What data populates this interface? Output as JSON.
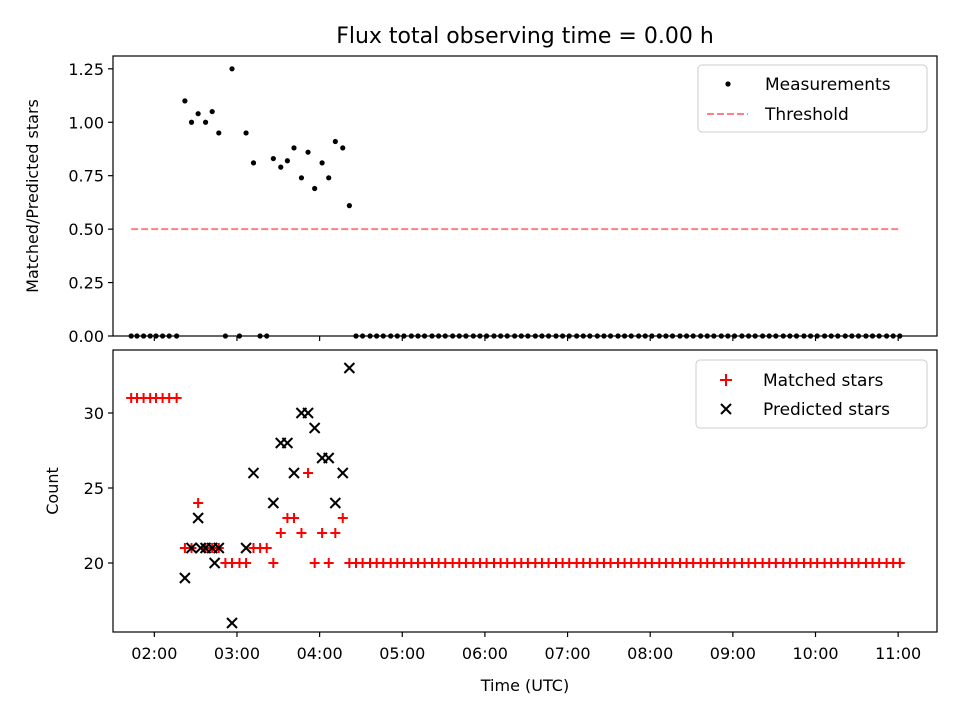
{
  "figure": {
    "title": "Flux total observing time = 0.00 h",
    "x_tick_labels": [
      "02:00",
      "03:00",
      "04:00",
      "05:00",
      "06:00",
      "07:00",
      "08:00",
      "09:00",
      "10:00",
      "11:00"
    ],
    "xlabel": "Time (UTC)"
  },
  "chart_data": [
    {
      "type": "scatter",
      "ylabel": "Matched/Predicted stars",
      "xlabel": "",
      "x_unit": "hours UTC",
      "xlim": [
        1.5,
        11.47
      ],
      "ylim": [
        0.0,
        1.31
      ],
      "y_ticks": [
        0.0,
        0.25,
        0.5,
        0.75,
        1.0,
        1.25
      ],
      "y_tick_labels": [
        "0.00",
        "0.25",
        "0.50",
        "0.75",
        "1.00",
        "1.25"
      ],
      "legend_position": "top-right",
      "series": [
        {
          "name": "Measurements",
          "kind": "scatter",
          "marker": "dot",
          "color": "#000000",
          "x": [
            1.72,
            1.79,
            1.87,
            1.95,
            2.02,
            2.1,
            2.18,
            2.27,
            2.37,
            2.45,
            2.53,
            2.62,
            2.7,
            2.78,
            2.86,
            2.94,
            3.03,
            3.11,
            3.2,
            3.28,
            3.36,
            3.44,
            3.53,
            3.61,
            3.69,
            3.78,
            3.86,
            3.94,
            4.03,
            4.11,
            4.19,
            4.28,
            4.36,
            4.44,
            4.52,
            4.61,
            4.69,
            4.77,
            4.86,
            4.94,
            5.02,
            5.11,
            5.19,
            5.27,
            5.36,
            5.44,
            5.52,
            5.61,
            5.69,
            5.77,
            5.86,
            5.94,
            6.02,
            6.11,
            6.19,
            6.27,
            6.36,
            6.44,
            6.52,
            6.61,
            6.69,
            6.77,
            6.86,
            6.94,
            7.02,
            7.11,
            7.19,
            7.27,
            7.36,
            7.44,
            7.52,
            7.61,
            7.69,
            7.77,
            7.86,
            7.94,
            8.02,
            8.11,
            8.19,
            8.27,
            8.36,
            8.44,
            8.52,
            8.61,
            8.69,
            8.77,
            8.86,
            8.94,
            9.02,
            9.11,
            9.19,
            9.27,
            9.36,
            9.44,
            9.52,
            9.61,
            9.69,
            9.77,
            9.86,
            9.94,
            10.02,
            10.11,
            10.19,
            10.27,
            10.36,
            10.44,
            10.52,
            10.61,
            10.69,
            10.77,
            10.86,
            10.94,
            11.02
          ],
          "y": [
            0,
            0,
            0,
            0,
            0,
            0,
            0,
            0,
            1.1,
            1.0,
            1.04,
            1.0,
            1.05,
            0.95,
            0,
            1.25,
            0,
            0.95,
            0.81,
            0,
            0,
            0.83,
            0.79,
            0.82,
            0.88,
            0.74,
            0.86,
            0.69,
            0.81,
            0.74,
            0.91,
            0.88,
            0.61,
            0,
            0,
            0,
            0,
            0,
            0,
            0,
            0,
            0,
            0,
            0,
            0,
            0,
            0,
            0,
            0,
            0,
            0,
            0,
            0,
            0,
            0,
            0,
            0,
            0,
            0,
            0,
            0,
            0,
            0,
            0,
            0,
            0,
            0,
            0,
            0,
            0,
            0,
            0,
            0,
            0,
            0,
            0,
            0,
            0,
            0,
            0,
            0,
            0,
            0,
            0,
            0,
            0,
            0,
            0,
            0,
            0,
            0,
            0,
            0,
            0,
            0,
            0,
            0,
            0,
            0,
            0,
            0,
            0,
            0,
            0,
            0,
            0,
            0,
            0,
            0,
            0,
            0,
            0,
            0
          ]
        },
        {
          "name": "Threshold",
          "kind": "line",
          "style": "dashed",
          "color": "#ff8080",
          "x": [
            1.72,
            11.02
          ],
          "y": [
            0.5,
            0.5
          ]
        }
      ]
    },
    {
      "type": "scatter",
      "ylabel": "Count",
      "xlabel": "Time (UTC)",
      "x_unit": "hours UTC",
      "xlim": [
        1.5,
        11.47
      ],
      "ylim": [
        15.4,
        34.2
      ],
      "y_ticks": [
        20,
        25,
        30
      ],
      "y_tick_labels": [
        "20",
        "25",
        "30"
      ],
      "legend_position": "top-right",
      "series": [
        {
          "name": "Matched stars",
          "marker": "plus",
          "color": "#ff0000",
          "x": [
            1.72,
            1.79,
            1.87,
            1.95,
            2.02,
            2.1,
            2.18,
            2.27,
            2.37,
            2.45,
            2.53,
            2.62,
            2.7,
            2.78,
            2.86,
            2.94,
            3.03,
            3.11,
            3.2,
            3.28,
            3.36,
            3.44,
            3.53,
            3.61,
            3.69,
            3.78,
            3.86,
            3.94,
            4.03,
            4.11,
            4.19,
            4.28,
            4.36,
            4.44,
            4.52,
            4.61,
            4.69,
            4.77,
            4.86,
            4.94,
            5.02,
            5.11,
            5.19,
            5.27,
            5.36,
            5.44,
            5.52,
            5.61,
            5.69,
            5.77,
            5.86,
            5.94,
            6.02,
            6.11,
            6.19,
            6.27,
            6.36,
            6.44,
            6.52,
            6.61,
            6.69,
            6.77,
            6.86,
            6.94,
            7.02,
            7.11,
            7.19,
            7.27,
            7.36,
            7.44,
            7.52,
            7.61,
            7.69,
            7.77,
            7.86,
            7.94,
            8.02,
            8.11,
            8.19,
            8.27,
            8.36,
            8.44,
            8.52,
            8.61,
            8.69,
            8.77,
            8.86,
            8.94,
            9.02,
            9.11,
            9.19,
            9.27,
            9.36,
            9.44,
            9.52,
            9.61,
            9.69,
            9.77,
            9.86,
            9.94,
            10.02,
            10.11,
            10.19,
            10.27,
            10.36,
            10.44,
            10.52,
            10.61,
            10.69,
            10.77,
            10.86,
            10.94,
            11.02
          ],
          "y": [
            31,
            31,
            31,
            31,
            31,
            31,
            31,
            31,
            21,
            21,
            24,
            21,
            21,
            21,
            20,
            20,
            20,
            20,
            21,
            21,
            21,
            20,
            22,
            23,
            23,
            22,
            26,
            20,
            22,
            20,
            22,
            23,
            20,
            20,
            20,
            20,
            20,
            20,
            20,
            20,
            20,
            20,
            20,
            20,
            20,
            20,
            20,
            20,
            20,
            20,
            20,
            20,
            20,
            20,
            20,
            20,
            20,
            20,
            20,
            20,
            20,
            20,
            20,
            20,
            20,
            20,
            20,
            20,
            20,
            20,
            20,
            20,
            20,
            20,
            20,
            20,
            20,
            20,
            20,
            20,
            20,
            20,
            20,
            20,
            20,
            20,
            20,
            20,
            20,
            20,
            20,
            20,
            20,
            20,
            20,
            20,
            20,
            20,
            20,
            20,
            20,
            20,
            20,
            20,
            20,
            20,
            20,
            20,
            20,
            20,
            20,
            20,
            20
          ]
        },
        {
          "name": "Predicted stars",
          "marker": "x",
          "color": "#000000",
          "x": [
            2.37,
            2.45,
            2.53,
            2.56,
            2.62,
            2.7,
            2.73,
            2.78,
            2.94,
            3.11,
            3.2,
            3.44,
            3.53,
            3.61,
            3.69,
            3.78,
            3.86,
            3.94,
            4.03,
            4.11,
            4.19,
            4.28,
            4.36
          ],
          "y": [
            19,
            21,
            23,
            21,
            21,
            21,
            20,
            21,
            16,
            21,
            26,
            24,
            28,
            28,
            26,
            30,
            30,
            29,
            27,
            27,
            24,
            26,
            33
          ]
        }
      ]
    }
  ]
}
